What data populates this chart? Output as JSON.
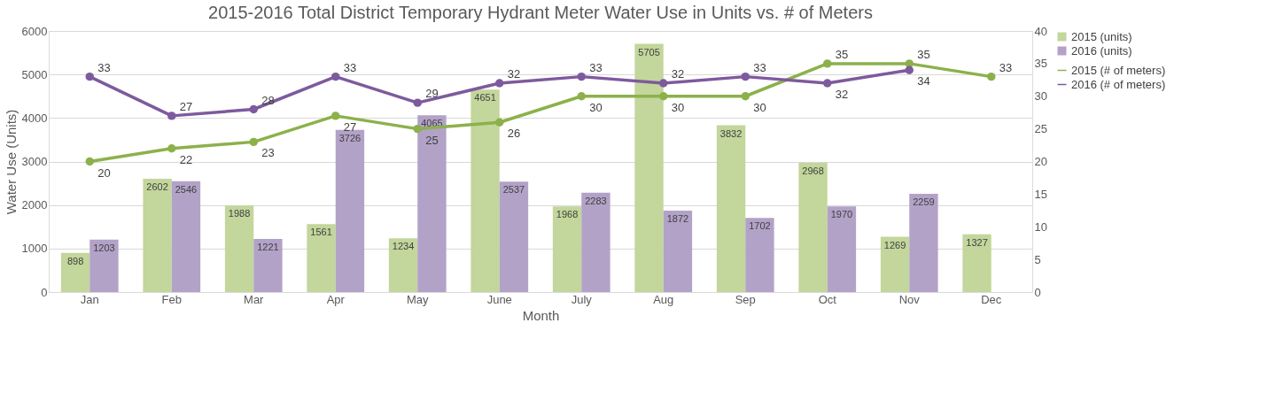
{
  "chart_data": {
    "type": "bar",
    "title": "2015-2016 Total District Temporary Hydrant Meter Water Use in Units vs. # of Meters",
    "xlabel": "Month",
    "ylabel": "Water Use (Units)",
    "categories": [
      "Jan",
      "Feb",
      "Mar",
      "Apr",
      "May",
      "June",
      "July",
      "Aug",
      "Sep",
      "Oct",
      "Nov",
      "Dec"
    ],
    "series": [
      {
        "name": "2015 (units)",
        "color": "#c3d69b",
        "values": [
          898,
          2602,
          1988,
          1561,
          1234,
          4651,
          1968,
          5705,
          3832,
          2968,
          1269,
          1327
        ]
      },
      {
        "name": "2016 (units)",
        "color": "#b3a2c7",
        "values": [
          1203,
          2546,
          1221,
          3726,
          4065,
          2537,
          2283,
          1872,
          1702,
          1970,
          2259,
          null
        ]
      },
      {
        "name": "2015 (# of meters)",
        "type": "line",
        "axis": "y2",
        "color": "#8cb14a",
        "values": [
          20,
          22,
          23,
          27,
          25,
          26,
          30,
          30,
          30,
          35,
          35,
          33
        ]
      },
      {
        "name": "2016 (# of meters)",
        "type": "line",
        "axis": "y2",
        "color": "#7d5a9e",
        "values": [
          33,
          27,
          28,
          33,
          29,
          32,
          33,
          32,
          33,
          32,
          34,
          null
        ]
      }
    ],
    "ylim": [
      0,
      6000
    ],
    "yticks": [
      0,
      1000,
      2000,
      3000,
      4000,
      5000,
      6000
    ],
    "y2lim": [
      0,
      40
    ],
    "y2ticks": [
      0,
      5,
      10,
      15,
      20,
      25,
      30,
      35,
      40
    ],
    "grid": "y",
    "legend": "right",
    "marker": "circle",
    "line_style": "solid",
    "data_labels": true
  }
}
